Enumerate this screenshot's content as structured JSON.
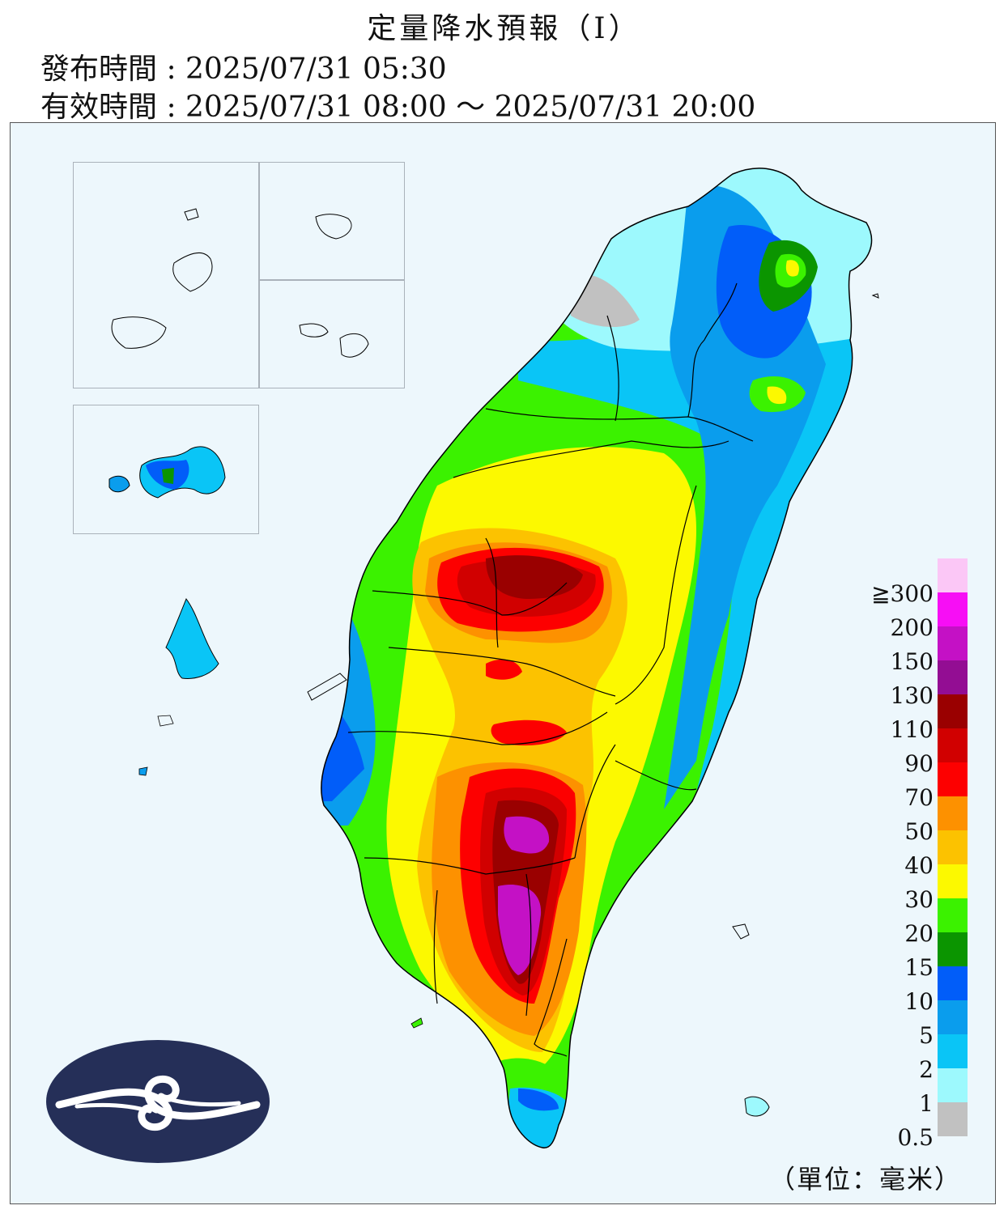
{
  "header": {
    "title": "定量降水預報（Ⅰ）",
    "issue_time": "發布時間 : 2025/07/31 05:30",
    "valid_time": "有效時間 : 2025/07/31 08:00 ～ 2025/07/31 20:00"
  },
  "legend": {
    "unit": "（單位：毫米）",
    "labels": [
      "≧300",
      "200",
      "150",
      "130",
      "110",
      "90",
      "70",
      "50",
      "40",
      "30",
      "20",
      "15",
      "10",
      "5",
      "2",
      "1",
      "0.5"
    ],
    "colors": [
      "#fbc7f6",
      "#f70ef5",
      "#c411c5",
      "#930d93",
      "#9a0000",
      "#d10000",
      "#fd0000",
      "#fd9100",
      "#fcc200",
      "#fcf900",
      "#3bf200",
      "#0b9500",
      "#015df9",
      "#0a9ded",
      "#0ac5f6",
      "#9df9fd",
      "#c1c1c1"
    ]
  },
  "colors": {
    "sea": "#edf7fc",
    "logo_bg": "#252f58",
    "border": "#000000"
  }
}
